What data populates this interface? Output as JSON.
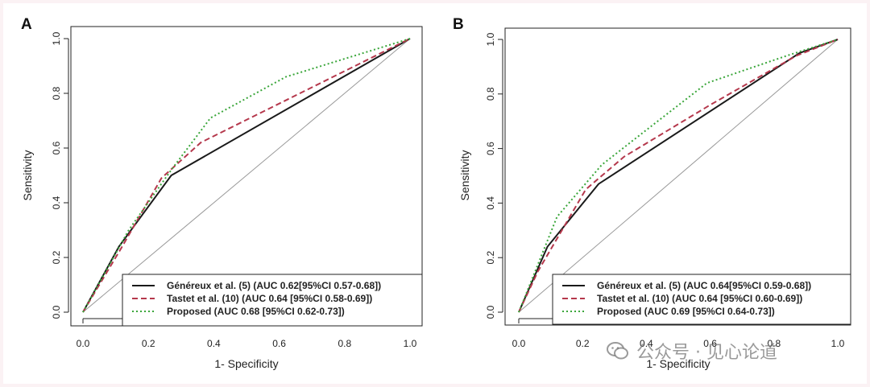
{
  "chart_data": [
    {
      "panel_label": "A",
      "type": "line",
      "title": "",
      "xlabel": "1- Specificity",
      "ylabel": "Sensitivity",
      "xlim": [
        0,
        1
      ],
      "ylim": [
        0,
        1
      ],
      "x_ticks": [
        "0.0",
        "0.2",
        "0.4",
        "0.6",
        "0.8",
        "1.0"
      ],
      "y_ticks": [
        "0.0",
        "0.2",
        "0.4",
        "0.6",
        "0.8",
        "1.0"
      ],
      "series": [
        {
          "name": "Généreux et al. (5) (AUC 0.62[95%CI 0.57-0.68])",
          "style": "solid",
          "color": "#1a1a1a",
          "x": [
            0,
            0.11,
            0.27,
            1
          ],
          "y": [
            0,
            0.24,
            0.5,
            1
          ]
        },
        {
          "name": "Tastet et al. (10) (AUC 0.64 [95%CI 0.58-0.69])",
          "style": "dashed",
          "color": "#b5384c",
          "x": [
            0,
            0.12,
            0.24,
            0.36,
            1
          ],
          "y": [
            0,
            0.24,
            0.49,
            0.62,
            1
          ]
        },
        {
          "name": "Proposed (AUC 0.68 [95%CI 0.62-0.73])",
          "style": "dotted",
          "color": "#3aa63a",
          "x": [
            0,
            0.14,
            0.27,
            0.39,
            0.62,
            1
          ],
          "y": [
            0,
            0.3,
            0.52,
            0.71,
            0.86,
            1
          ]
        },
        {
          "name": "reference",
          "style": "solid",
          "color": "#999999",
          "x": [
            0,
            1
          ],
          "y": [
            0,
            1
          ]
        }
      ],
      "legend_position": "bottom-right"
    },
    {
      "panel_label": "B",
      "type": "line",
      "title": "",
      "xlabel": "1- Specificity",
      "ylabel": "Sensitivity",
      "xlim": [
        0,
        1
      ],
      "ylim": [
        0,
        1
      ],
      "x_ticks": [
        "0.0",
        "0.2",
        "0.4",
        "0.6",
        "0.8",
        "1.0"
      ],
      "y_ticks": [
        "0.0",
        "0.2",
        "0.4",
        "0.6",
        "0.8",
        "1.0"
      ],
      "series": [
        {
          "name": "Généreux et al. (5) (AUC 0.64[95%CI 0.59-0.68])",
          "style": "solid",
          "color": "#1a1a1a",
          "x": [
            0,
            0.09,
            0.25,
            0.88,
            1
          ],
          "y": [
            0,
            0.24,
            0.47,
            0.95,
            1
          ]
        },
        {
          "name": "Tastet et al. (10) (AUC 0.64 [95%CI 0.60-0.69])",
          "style": "dashed",
          "color": "#b5384c",
          "x": [
            0,
            0.06,
            0.21,
            0.33,
            0.6,
            0.87,
            1
          ],
          "y": [
            0,
            0.15,
            0.45,
            0.57,
            0.76,
            0.94,
            1
          ]
        },
        {
          "name": "Proposed (AUC 0.69 [95%CI 0.64-0.73])",
          "style": "dotted",
          "color": "#3aa63a",
          "x": [
            0,
            0.12,
            0.26,
            0.38,
            0.59,
            0.84,
            1
          ],
          "y": [
            0,
            0.35,
            0.54,
            0.65,
            0.84,
            0.94,
            1
          ]
        },
        {
          "name": "reference",
          "style": "solid",
          "color": "#999999",
          "x": [
            0,
            1
          ],
          "y": [
            0,
            1
          ]
        }
      ],
      "legend_position": "bottom-right"
    }
  ],
  "watermark": {
    "text": "公众号 · 见心论道",
    "icon": "wechat-icon"
  }
}
